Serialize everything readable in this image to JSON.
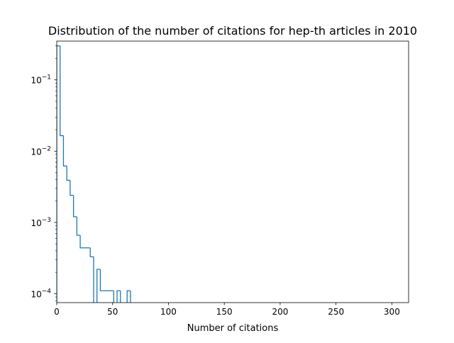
{
  "chart_data": {
    "type": "step-histogram",
    "title": "Distribution of the number of citations for hep-th articles in 2010",
    "xlabel": "Number of citations",
    "ylabel": "",
    "xlim": [
      0,
      315
    ],
    "ylim": [
      7.5e-05,
      0.35
    ],
    "yscale": "log",
    "grid": false,
    "legend": "none",
    "line_color": "#1f77b4",
    "x_ticks": [
      0,
      50,
      100,
      150,
      200,
      250,
      300
    ],
    "x_tick_labels": [
      "0",
      "50",
      "100",
      "150",
      "200",
      "250",
      "300"
    ],
    "y_ticks": [
      {
        "value": 0.1,
        "base": "10",
        "exp": "−1"
      },
      {
        "value": 0.01,
        "base": "10",
        "exp": "−2"
      },
      {
        "value": 0.001,
        "base": "10",
        "exp": "−3"
      },
      {
        "value": 0.0001,
        "base": "10",
        "exp": "−4"
      }
    ],
    "bins": [
      {
        "x0": 0,
        "x1": 3,
        "y": 0.3
      },
      {
        "x0": 3,
        "x1": 6,
        "y": 0.0165
      },
      {
        "x0": 6,
        "x1": 9,
        "y": 0.0062
      },
      {
        "x0": 9,
        "x1": 12,
        "y": 0.0039
      },
      {
        "x0": 12,
        "x1": 15,
        "y": 0.0024
      },
      {
        "x0": 15,
        "x1": 18,
        "y": 0.0012
      },
      {
        "x0": 18,
        "x1": 21,
        "y": 0.00066
      },
      {
        "x0": 21,
        "x1": 30,
        "y": 0.00044
      },
      {
        "x0": 30,
        "x1": 33,
        "y": 0.00033
      },
      {
        "x0": 33,
        "x1": 36,
        "y": 0
      },
      {
        "x0": 36,
        "x1": 39,
        "y": 0.00022
      },
      {
        "x0": 39,
        "x1": 51,
        "y": 0.00011
      },
      {
        "x0": 51,
        "x1": 54,
        "y": 0
      },
      {
        "x0": 54,
        "x1": 57,
        "y": 0.00011
      },
      {
        "x0": 57,
        "x1": 63,
        "y": 0
      },
      {
        "x0": 63,
        "x1": 66,
        "y": 0.00011
      },
      {
        "x0": 66,
        "x1": 69,
        "y": 0
      }
    ]
  }
}
